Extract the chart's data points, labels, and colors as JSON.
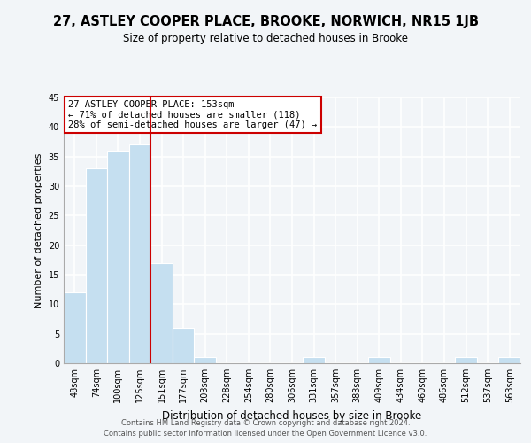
{
  "title": "27, ASTLEY COOPER PLACE, BROOKE, NORWICH, NR15 1JB",
  "subtitle": "Size of property relative to detached houses in Brooke",
  "xlabel": "Distribution of detached houses by size in Brooke",
  "ylabel": "Number of detached properties",
  "bin_labels": [
    "48sqm",
    "74sqm",
    "100sqm",
    "125sqm",
    "151sqm",
    "177sqm",
    "203sqm",
    "228sqm",
    "254sqm",
    "280sqm",
    "306sqm",
    "331sqm",
    "357sqm",
    "383sqm",
    "409sqm",
    "434sqm",
    "460sqm",
    "486sqm",
    "512sqm",
    "537sqm",
    "563sqm"
  ],
  "bar_heights": [
    12,
    33,
    36,
    37,
    17,
    6,
    1,
    0,
    0,
    0,
    0,
    1,
    0,
    0,
    1,
    0,
    0,
    0,
    1,
    0,
    1
  ],
  "bar_color": "#c5dff0",
  "bar_edge_color": "white",
  "background_color": "#f2f5f8",
  "grid_color": "#ffffff",
  "marker_line_color": "#cc0000",
  "annotation_text": "27 ASTLEY COOPER PLACE: 153sqm\n← 71% of detached houses are smaller (118)\n28% of semi-detached houses are larger (47) →",
  "annotation_box_color": "#ffffff",
  "annotation_box_edge": "#cc0000",
  "ylim": [
    0,
    45
  ],
  "yticks": [
    0,
    5,
    10,
    15,
    20,
    25,
    30,
    35,
    40,
    45
  ],
  "footer1": "Contains HM Land Registry data © Crown copyright and database right 2024.",
  "footer2": "Contains public sector information licensed under the Open Government Licence v3.0."
}
